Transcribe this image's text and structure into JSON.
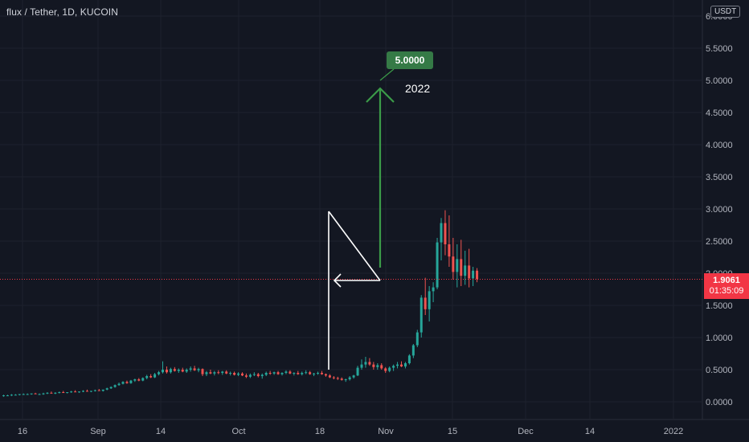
{
  "header": {
    "symbol": "flux / Tether, 1D, KUCOIN",
    "currency": "USDT"
  },
  "price_label": {
    "price": "1.9061",
    "countdown": "01:35:09"
  },
  "annotations": {
    "target_label": "5.0000",
    "year_note": "2022"
  },
  "colors": {
    "background": "#131722",
    "up": "#26a69a",
    "down": "#ef5350",
    "axis_text": "#b2b5be",
    "grid": "#1e222d",
    "price_line": "#f23645",
    "arrow": "#3b9b48",
    "flag": "#ffffff",
    "target_badge": "#357a46"
  },
  "chart_data": {
    "type": "candlestick",
    "ylim": [
      -0.2,
      6.0
    ],
    "y_ticks": [
      "0.0000",
      "0.5000",
      "1.0000",
      "1.5000",
      "2.0000",
      "2.5000",
      "3.0000",
      "3.5000",
      "4.0000",
      "4.5000",
      "5.0000",
      "5.5000",
      "6.0000"
    ],
    "x_ticks": [
      "16",
      "Sep",
      "14",
      "Oct",
      "18",
      "Nov",
      "15",
      "Dec",
      "14",
      "2022"
    ],
    "last_price": 1.9061,
    "candles": [
      [
        0.09,
        0.11,
        0.08,
        0.1
      ],
      [
        0.1,
        0.11,
        0.09,
        0.1
      ],
      [
        0.1,
        0.12,
        0.09,
        0.11
      ],
      [
        0.11,
        0.12,
        0.1,
        0.11
      ],
      [
        0.11,
        0.12,
        0.1,
        0.12
      ],
      [
        0.12,
        0.13,
        0.11,
        0.12
      ],
      [
        0.12,
        0.13,
        0.11,
        0.12
      ],
      [
        0.12,
        0.13,
        0.11,
        0.13
      ],
      [
        0.13,
        0.14,
        0.12,
        0.12
      ],
      [
        0.12,
        0.13,
        0.11,
        0.12
      ],
      [
        0.12,
        0.14,
        0.11,
        0.13
      ],
      [
        0.13,
        0.15,
        0.12,
        0.14
      ],
      [
        0.14,
        0.16,
        0.13,
        0.13
      ],
      [
        0.13,
        0.15,
        0.12,
        0.14
      ],
      [
        0.14,
        0.16,
        0.13,
        0.15
      ],
      [
        0.15,
        0.17,
        0.14,
        0.14
      ],
      [
        0.14,
        0.15,
        0.13,
        0.15
      ],
      [
        0.15,
        0.17,
        0.14,
        0.16
      ],
      [
        0.16,
        0.18,
        0.15,
        0.15
      ],
      [
        0.15,
        0.16,
        0.14,
        0.16
      ],
      [
        0.16,
        0.18,
        0.15,
        0.17
      ],
      [
        0.17,
        0.19,
        0.16,
        0.16
      ],
      [
        0.16,
        0.17,
        0.15,
        0.17
      ],
      [
        0.17,
        0.19,
        0.16,
        0.18
      ],
      [
        0.18,
        0.2,
        0.17,
        0.17
      ],
      [
        0.17,
        0.19,
        0.16,
        0.19
      ],
      [
        0.19,
        0.22,
        0.18,
        0.21
      ],
      [
        0.21,
        0.24,
        0.2,
        0.23
      ],
      [
        0.23,
        0.27,
        0.22,
        0.26
      ],
      [
        0.26,
        0.3,
        0.25,
        0.28
      ],
      [
        0.28,
        0.32,
        0.27,
        0.31
      ],
      [
        0.31,
        0.33,
        0.28,
        0.29
      ],
      [
        0.29,
        0.34,
        0.28,
        0.33
      ],
      [
        0.33,
        0.36,
        0.31,
        0.35
      ],
      [
        0.35,
        0.37,
        0.32,
        0.33
      ],
      [
        0.33,
        0.38,
        0.32,
        0.37
      ],
      [
        0.37,
        0.42,
        0.35,
        0.4
      ],
      [
        0.4,
        0.43,
        0.37,
        0.38
      ],
      [
        0.38,
        0.45,
        0.37,
        0.43
      ],
      [
        0.43,
        0.48,
        0.41,
        0.46
      ],
      [
        0.46,
        0.63,
        0.44,
        0.5
      ],
      [
        0.5,
        0.55,
        0.44,
        0.46
      ],
      [
        0.46,
        0.53,
        0.44,
        0.51
      ],
      [
        0.51,
        0.54,
        0.47,
        0.48
      ],
      [
        0.48,
        0.52,
        0.45,
        0.5
      ],
      [
        0.5,
        0.53,
        0.46,
        0.47
      ],
      [
        0.47,
        0.52,
        0.45,
        0.5
      ],
      [
        0.5,
        0.55,
        0.47,
        0.52
      ],
      [
        0.52,
        0.56,
        0.48,
        0.49
      ],
      [
        0.49,
        0.53,
        0.46,
        0.51
      ],
      [
        0.51,
        0.52,
        0.4,
        0.43
      ],
      [
        0.43,
        0.48,
        0.4,
        0.46
      ],
      [
        0.46,
        0.5,
        0.43,
        0.44
      ],
      [
        0.44,
        0.48,
        0.41,
        0.46
      ],
      [
        0.46,
        0.49,
        0.43,
        0.45
      ],
      [
        0.45,
        0.48,
        0.42,
        0.47
      ],
      [
        0.47,
        0.49,
        0.43,
        0.44
      ],
      [
        0.44,
        0.47,
        0.41,
        0.45
      ],
      [
        0.45,
        0.47,
        0.41,
        0.42
      ],
      [
        0.42,
        0.46,
        0.4,
        0.44
      ],
      [
        0.44,
        0.46,
        0.4,
        0.41
      ],
      [
        0.41,
        0.44,
        0.37,
        0.39
      ],
      [
        0.39,
        0.44,
        0.37,
        0.42
      ],
      [
        0.42,
        0.46,
        0.4,
        0.43
      ],
      [
        0.43,
        0.45,
        0.38,
        0.4
      ],
      [
        0.4,
        0.44,
        0.36,
        0.42
      ],
      [
        0.42,
        0.47,
        0.4,
        0.45
      ],
      [
        0.45,
        0.48,
        0.42,
        0.44
      ],
      [
        0.44,
        0.47,
        0.42,
        0.46
      ],
      [
        0.46,
        0.48,
        0.42,
        0.43
      ],
      [
        0.43,
        0.46,
        0.41,
        0.45
      ],
      [
        0.45,
        0.49,
        0.43,
        0.47
      ],
      [
        0.47,
        0.49,
        0.43,
        0.44
      ],
      [
        0.44,
        0.46,
        0.41,
        0.45
      ],
      [
        0.45,
        0.48,
        0.42,
        0.43
      ],
      [
        0.43,
        0.47,
        0.41,
        0.45
      ],
      [
        0.45,
        0.49,
        0.43,
        0.46
      ],
      [
        0.46,
        0.48,
        0.42,
        0.43
      ],
      [
        0.43,
        0.45,
        0.4,
        0.44
      ],
      [
        0.44,
        0.47,
        0.42,
        0.45
      ],
      [
        0.45,
        0.48,
        0.42,
        0.43
      ],
      [
        0.43,
        0.44,
        0.39,
        0.41
      ],
      [
        0.41,
        0.43,
        0.37,
        0.38
      ],
      [
        0.38,
        0.4,
        0.35,
        0.37
      ],
      [
        0.37,
        0.39,
        0.34,
        0.36
      ],
      [
        0.36,
        0.38,
        0.33,
        0.34
      ],
      [
        0.34,
        0.36,
        0.31,
        0.35
      ],
      [
        0.35,
        0.4,
        0.33,
        0.38
      ],
      [
        0.38,
        0.42,
        0.36,
        0.41
      ],
      [
        0.41,
        0.56,
        0.4,
        0.53
      ],
      [
        0.53,
        0.66,
        0.5,
        0.58
      ],
      [
        0.58,
        0.7,
        0.53,
        0.62
      ],
      [
        0.62,
        0.68,
        0.56,
        0.58
      ],
      [
        0.58,
        0.62,
        0.5,
        0.54
      ],
      [
        0.54,
        0.6,
        0.5,
        0.57
      ],
      [
        0.57,
        0.6,
        0.5,
        0.52
      ],
      [
        0.52,
        0.54,
        0.45,
        0.48
      ],
      [
        0.48,
        0.55,
        0.46,
        0.53
      ],
      [
        0.53,
        0.58,
        0.48,
        0.56
      ],
      [
        0.56,
        0.62,
        0.52,
        0.58
      ],
      [
        0.58,
        0.63,
        0.54,
        0.55
      ],
      [
        0.55,
        0.62,
        0.52,
        0.6
      ],
      [
        0.6,
        0.74,
        0.58,
        0.72
      ],
      [
        0.72,
        0.9,
        0.68,
        0.88
      ],
      [
        0.88,
        1.12,
        0.85,
        1.08
      ],
      [
        1.08,
        1.66,
        1.0,
        1.62
      ],
      [
        1.62,
        1.93,
        1.35,
        1.44
      ],
      [
        1.44,
        1.8,
        1.25,
        1.72
      ],
      [
        1.72,
        1.86,
        1.55,
        1.78
      ],
      [
        1.78,
        2.55,
        1.75,
        2.48
      ],
      [
        2.48,
        2.86,
        2.2,
        2.78
      ],
      [
        2.78,
        2.98,
        2.28,
        2.45
      ],
      [
        2.45,
        2.9,
        2.1,
        2.26
      ],
      [
        2.26,
        2.55,
        1.9,
        2.02
      ],
      [
        2.02,
        2.45,
        1.78,
        2.22
      ],
      [
        2.22,
        2.52,
        1.8,
        1.96
      ],
      [
        1.96,
        2.35,
        1.82,
        2.12
      ],
      [
        2.12,
        2.38,
        1.78,
        1.92
      ],
      [
        1.92,
        2.1,
        1.8,
        2.04
      ],
      [
        2.04,
        2.08,
        1.86,
        1.91
      ]
    ]
  }
}
